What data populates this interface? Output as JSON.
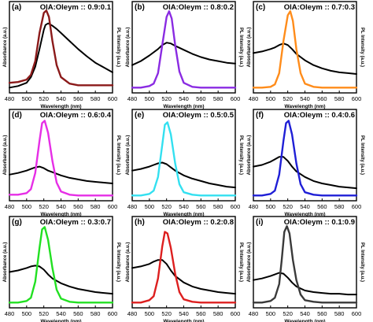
{
  "figure": {
    "common": {
      "xlabel": "Wavelength (nm)",
      "ylabel_left": "Absorbance (a.u.)",
      "ylabel_right": "PL Intensity (a.u.)",
      "xlim": [
        480,
        600
      ],
      "x_ticks": [
        480,
        500,
        520,
        540,
        560,
        580,
        600
      ],
      "absorbance_color": "#000000"
    }
  },
  "chart_data": [
    {
      "panel": "(a)",
      "title": "OlA:Oleym :: 0.9:0.1",
      "type": "line",
      "xlabel": "Wavelength (nm)",
      "ylabel": "Absorbance (a.u.)",
      "y2label": "PL Intensity (a.u.)",
      "xlim": [
        480,
        600
      ],
      "x_ticks": [
        480,
        500,
        520,
        540,
        560,
        580,
        600
      ],
      "series": [
        {
          "role": "absorbance",
          "color": "#000000",
          "x": [
            480,
            490,
            500,
            505,
            510,
            515,
            520,
            522,
            525,
            527,
            530,
            535,
            540,
            550,
            560,
            570,
            580,
            590,
            600
          ],
          "y": [
            0.02,
            0.04,
            0.08,
            0.15,
            0.28,
            0.5,
            0.74,
            0.8,
            0.82,
            0.81,
            0.79,
            0.75,
            0.7,
            0.6,
            0.5,
            0.41,
            0.33,
            0.27,
            0.21
          ]
        },
        {
          "role": "PL",
          "color": "#8b1a1a",
          "x": [
            480,
            490,
            500,
            505,
            510,
            515,
            520,
            523,
            526,
            530,
            535,
            540,
            550,
            560,
            570,
            580,
            590,
            600
          ],
          "y": [
            0.08,
            0.09,
            0.12,
            0.18,
            0.35,
            0.7,
            0.95,
            0.98,
            0.9,
            0.6,
            0.3,
            0.15,
            0.07,
            0.05,
            0.05,
            0.05,
            0.05,
            0.05
          ]
        }
      ]
    },
    {
      "panel": "(b)",
      "title": "OlA:Oleym :: 0.8:0.2",
      "type": "line",
      "xlabel": "Wavelength (nm)",
      "ylabel": "Absorbance (a.u.)",
      "y2label": "PL Intensity (a.u.)",
      "xlim": [
        480,
        600
      ],
      "x_ticks": [
        480,
        500,
        520,
        540,
        560,
        580,
        600
      ],
      "series": [
        {
          "role": "absorbance",
          "color": "#000000",
          "x": [
            480,
            490,
            500,
            510,
            515,
            520,
            525,
            530,
            540,
            550,
            560,
            570,
            580,
            590,
            600
          ],
          "y": [
            0.3,
            0.35,
            0.42,
            0.5,
            0.55,
            0.58,
            0.57,
            0.54,
            0.49,
            0.44,
            0.4,
            0.37,
            0.35,
            0.33,
            0.32
          ]
        },
        {
          "role": "PL",
          "color": "#8a2be2",
          "x": [
            480,
            490,
            500,
            505,
            510,
            515,
            520,
            523,
            526,
            530,
            535,
            540,
            550,
            560,
            570,
            580,
            590,
            600
          ],
          "y": [
            0.02,
            0.02,
            0.04,
            0.07,
            0.2,
            0.55,
            0.9,
            0.97,
            0.88,
            0.55,
            0.22,
            0.08,
            0.03,
            0.02,
            0.02,
            0.02,
            0.02,
            0.02
          ]
        }
      ]
    },
    {
      "panel": "(c)",
      "title": "OlA:Oleym :: 0.7:0.3",
      "type": "line",
      "xlabel": "Wavelength (nm)",
      "ylabel": "Absorbance (a.u.)",
      "y2label": "PL Intensity (a.u.)",
      "xlim": [
        480,
        600
      ],
      "x_ticks": [
        480,
        500,
        520,
        540,
        560,
        580,
        600
      ],
      "series": [
        {
          "role": "absorbance",
          "color": "#000000",
          "x": [
            480,
            490,
            500,
            505,
            510,
            515,
            520,
            525,
            530,
            535,
            540,
            550,
            560,
            570,
            580,
            590,
            600
          ],
          "y": [
            0.45,
            0.47,
            0.5,
            0.52,
            0.55,
            0.57,
            0.55,
            0.5,
            0.44,
            0.4,
            0.36,
            0.3,
            0.26,
            0.23,
            0.21,
            0.2,
            0.19
          ]
        },
        {
          "role": "PL",
          "color": "#ff8c1a",
          "x": [
            480,
            490,
            500,
            505,
            510,
            515,
            520,
            523,
            526,
            530,
            535,
            540,
            550,
            560,
            570,
            580,
            590,
            600
          ],
          "y": [
            0.02,
            0.02,
            0.03,
            0.06,
            0.2,
            0.6,
            0.92,
            0.97,
            0.85,
            0.5,
            0.2,
            0.07,
            0.03,
            0.02,
            0.02,
            0.02,
            0.02,
            0.02
          ]
        }
      ]
    },
    {
      "panel": "(d)",
      "title": "OlA:Oleym :: 0.6:0.4",
      "type": "line",
      "xlabel": "Wavelength (nm)",
      "ylabel": "Absorbance (a.u.)",
      "y2label": "PL Intensity (a.u.)",
      "xlim": [
        480,
        600
      ],
      "x_ticks": [
        480,
        500,
        520,
        540,
        560,
        580,
        600
      ],
      "series": [
        {
          "role": "absorbance",
          "color": "#000000",
          "x": [
            480,
            490,
            500,
            505,
            510,
            515,
            520,
            525,
            530,
            540,
            550,
            560,
            570,
            580,
            590,
            600
          ],
          "y": [
            0.28,
            0.3,
            0.33,
            0.35,
            0.37,
            0.38,
            0.36,
            0.33,
            0.31,
            0.27,
            0.24,
            0.22,
            0.2,
            0.19,
            0.18,
            0.17
          ]
        },
        {
          "role": "PL",
          "color": "#e62ee6",
          "x": [
            480,
            490,
            500,
            505,
            510,
            515,
            518,
            521,
            525,
            530,
            535,
            540,
            550,
            560,
            570,
            580,
            590,
            600
          ],
          "y": [
            0.03,
            0.03,
            0.05,
            0.1,
            0.3,
            0.7,
            0.92,
            0.95,
            0.8,
            0.45,
            0.18,
            0.07,
            0.03,
            0.02,
            0.02,
            0.02,
            0.02,
            0.02
          ]
        }
      ]
    },
    {
      "panel": "(e)",
      "title": "OlA:Oleym :: 0.5:0.5",
      "type": "line",
      "xlabel": "Wavelength (nm)",
      "ylabel": "Absorbance (a.u.)",
      "y2label": "PL Intensity (a.u.)",
      "xlim": [
        480,
        600
      ],
      "x_ticks": [
        480,
        500,
        520,
        540,
        560,
        580,
        600
      ],
      "series": [
        {
          "role": "absorbance",
          "color": "#000000",
          "x": [
            480,
            490,
            500,
            505,
            510,
            515,
            520,
            525,
            530,
            540,
            550,
            560,
            570,
            580,
            590,
            600
          ],
          "y": [
            0.33,
            0.35,
            0.38,
            0.4,
            0.42,
            0.43,
            0.41,
            0.37,
            0.33,
            0.27,
            0.23,
            0.2,
            0.17,
            0.15,
            0.13,
            0.12
          ]
        },
        {
          "role": "PL",
          "color": "#33e0f0",
          "x": [
            480,
            490,
            500,
            505,
            510,
            515,
            518,
            521,
            525,
            530,
            535,
            540,
            550,
            560,
            570,
            580,
            590,
            600
          ],
          "y": [
            0.02,
            0.02,
            0.04,
            0.08,
            0.25,
            0.65,
            0.9,
            0.93,
            0.78,
            0.42,
            0.16,
            0.06,
            0.03,
            0.02,
            0.02,
            0.02,
            0.02,
            0.02
          ]
        }
      ]
    },
    {
      "panel": "(f)",
      "title": "OlA:Oleym :: 0.4:0.6",
      "type": "line",
      "xlabel": "Wavelength (nm)",
      "ylabel": "Absorbance (a.u.)",
      "y2label": "PL Intensity (a.u.)",
      "xlim": [
        480,
        600
      ],
      "x_ticks": [
        480,
        500,
        520,
        540,
        560,
        580,
        600
      ],
      "series": [
        {
          "role": "absorbance",
          "color": "#000000",
          "x": [
            480,
            490,
            500,
            505,
            510,
            515,
            520,
            525,
            530,
            540,
            550,
            560,
            570,
            580,
            590,
            600
          ],
          "y": [
            0.38,
            0.4,
            0.44,
            0.47,
            0.5,
            0.5,
            0.45,
            0.38,
            0.32,
            0.25,
            0.2,
            0.17,
            0.15,
            0.13,
            0.12,
            0.11
          ]
        },
        {
          "role": "PL",
          "color": "#1f1fd6",
          "x": [
            480,
            490,
            500,
            505,
            510,
            515,
            518,
            521,
            525,
            530,
            535,
            540,
            550,
            560,
            570,
            580,
            590,
            600
          ],
          "y": [
            0.02,
            0.02,
            0.04,
            0.08,
            0.28,
            0.7,
            0.92,
            0.95,
            0.78,
            0.42,
            0.16,
            0.06,
            0.03,
            0.02,
            0.02,
            0.02,
            0.02,
            0.02
          ]
        }
      ]
    },
    {
      "panel": "(g)",
      "title": "OlA:Oleym :: 0.3:0.7",
      "type": "line",
      "xlabel": "Wavelength (nm)",
      "ylabel": "Absorbance (a.u.)",
      "y2label": "PL Intensity (a.u.)",
      "xlim": [
        480,
        600
      ],
      "x_ticks": [
        480,
        500,
        520,
        540,
        560,
        580,
        600
      ],
      "series": [
        {
          "role": "absorbance",
          "color": "#000000",
          "x": [
            480,
            490,
            500,
            505,
            510,
            515,
            520,
            525,
            530,
            540,
            550,
            560,
            570,
            580,
            590,
            600
          ],
          "y": [
            0.4,
            0.42,
            0.45,
            0.47,
            0.48,
            0.47,
            0.43,
            0.37,
            0.32,
            0.26,
            0.22,
            0.19,
            0.17,
            0.15,
            0.14,
            0.13
          ]
        },
        {
          "role": "PL",
          "color": "#22e022",
          "x": [
            480,
            490,
            500,
            505,
            510,
            515,
            518,
            521,
            525,
            530,
            535,
            540,
            550,
            560,
            570,
            580,
            590,
            600
          ],
          "y": [
            0.02,
            0.02,
            0.04,
            0.08,
            0.28,
            0.7,
            0.93,
            0.96,
            0.8,
            0.45,
            0.18,
            0.07,
            0.03,
            0.02,
            0.02,
            0.02,
            0.02,
            0.02
          ]
        }
      ]
    },
    {
      "panel": "(h)",
      "title": "OlA:Oleym :: 0.2:0.8",
      "type": "line",
      "xlabel": "Wavelength (nm)",
      "ylabel": "Absorbance (a.u.)",
      "y2label": "PL Intensity (a.u.)",
      "xlim": [
        480,
        600
      ],
      "x_ticks": [
        480,
        500,
        520,
        540,
        560,
        580,
        600
      ],
      "series": [
        {
          "role": "absorbance",
          "color": "#000000",
          "x": [
            480,
            490,
            500,
            505,
            510,
            515,
            520,
            525,
            530,
            540,
            550,
            560,
            570,
            580,
            590,
            600
          ],
          "y": [
            0.45,
            0.47,
            0.5,
            0.53,
            0.55,
            0.55,
            0.5,
            0.42,
            0.35,
            0.27,
            0.22,
            0.19,
            0.17,
            0.15,
            0.14,
            0.13
          ]
        },
        {
          "role": "PL",
          "color": "#dd1f1f",
          "x": [
            480,
            490,
            500,
            505,
            510,
            515,
            518,
            521,
            525,
            530,
            535,
            540,
            550,
            560,
            570,
            580,
            590,
            600
          ],
          "y": [
            0.02,
            0.02,
            0.05,
            0.1,
            0.32,
            0.72,
            0.9,
            0.88,
            0.7,
            0.38,
            0.15,
            0.06,
            0.03,
            0.02,
            0.02,
            0.02,
            0.02,
            0.02
          ]
        }
      ]
    },
    {
      "panel": "(i)",
      "title": "OlA:Oleym :: 0.1:0.9",
      "type": "line",
      "xlabel": "Wavelength (nm)",
      "ylabel": "Absorbance (a.u.)",
      "y2label": "PL Intensity (a.u.)",
      "xlim": [
        480,
        600
      ],
      "x_ticks": [
        480,
        500,
        520,
        540,
        560,
        580,
        600
      ],
      "series": [
        {
          "role": "absorbance",
          "color": "#000000",
          "x": [
            480,
            490,
            500,
            505,
            510,
            515,
            520,
            525,
            530,
            540,
            550,
            560,
            570,
            580,
            590,
            600
          ],
          "y": [
            0.3,
            0.32,
            0.35,
            0.37,
            0.39,
            0.38,
            0.33,
            0.27,
            0.22,
            0.17,
            0.15,
            0.14,
            0.13,
            0.13,
            0.12,
            0.12
          ]
        },
        {
          "role": "PL",
          "color": "#3a3a3a",
          "x": [
            480,
            490,
            500,
            505,
            510,
            513,
            516,
            519,
            522,
            526,
            530,
            535,
            540,
            550,
            560,
            570,
            580,
            590,
            600
          ],
          "y": [
            0.02,
            0.02,
            0.04,
            0.08,
            0.25,
            0.55,
            0.9,
            0.97,
            0.88,
            0.55,
            0.3,
            0.12,
            0.05,
            0.03,
            0.02,
            0.02,
            0.02,
            0.02,
            0.02
          ]
        }
      ]
    }
  ]
}
